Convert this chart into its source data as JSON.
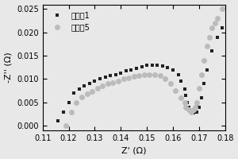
{
  "series1_label": "对比例1",
  "series2_label": "实施例5",
  "series1_color": "#222222",
  "series2_color": "#bbbbbb",
  "series1_marker": "s",
  "series2_marker": "o",
  "series1_markersize": 3.5,
  "series2_markersize": 5.0,
  "xlabel": "Z' (Ω)",
  "ylabel": "-Z'' (Ω)",
  "xlim": [
    0.11,
    0.18
  ],
  "ylim": [
    -0.001,
    0.026
  ],
  "xticks": [
    0.11,
    0.12,
    0.13,
    0.14,
    0.15,
    0.16,
    0.17,
    0.18
  ],
  "yticks": [
    0.0,
    0.005,
    0.01,
    0.015,
    0.02,
    0.025
  ],
  "series1_x": [
    0.116,
    0.118,
    0.12,
    0.122,
    0.124,
    0.126,
    0.128,
    0.13,
    0.132,
    0.134,
    0.136,
    0.138,
    0.14,
    0.142,
    0.144,
    0.146,
    0.148,
    0.15,
    0.152,
    0.154,
    0.156,
    0.158,
    0.16,
    0.162,
    0.163,
    0.1645,
    0.165,
    0.1655,
    0.166,
    0.167,
    0.168,
    0.169,
    0.17,
    0.171,
    0.172,
    0.173,
    0.175,
    0.177,
    0.179
  ],
  "series1_y": [
    0.001,
    0.003,
    0.005,
    0.007,
    0.0078,
    0.0085,
    0.009,
    0.0095,
    0.01,
    0.0105,
    0.0108,
    0.011,
    0.0113,
    0.0118,
    0.012,
    0.0123,
    0.0127,
    0.013,
    0.013,
    0.013,
    0.0128,
    0.0125,
    0.012,
    0.011,
    0.0095,
    0.0078,
    0.0065,
    0.005,
    0.004,
    0.003,
    0.0027,
    0.003,
    0.004,
    0.006,
    0.009,
    0.012,
    0.016,
    0.019,
    0.021
  ],
  "series2_x": [
    0.119,
    0.121,
    0.123,
    0.125,
    0.127,
    0.129,
    0.131,
    0.133,
    0.135,
    0.137,
    0.139,
    0.141,
    0.143,
    0.145,
    0.147,
    0.149,
    0.151,
    0.153,
    0.155,
    0.157,
    0.159,
    0.161,
    0.163,
    0.1645,
    0.165,
    0.166,
    0.167,
    0.168,
    0.1685,
    0.169,
    0.17,
    0.171,
    0.172,
    0.173,
    0.174,
    0.175,
    0.176,
    0.177,
    0.179
  ],
  "series2_y": [
    0.0,
    0.003,
    0.005,
    0.0062,
    0.0068,
    0.0074,
    0.008,
    0.0085,
    0.009,
    0.0093,
    0.0096,
    0.01,
    0.0103,
    0.0106,
    0.0108,
    0.011,
    0.011,
    0.011,
    0.0108,
    0.01,
    0.009,
    0.0075,
    0.006,
    0.005,
    0.004,
    0.0035,
    0.003,
    0.0035,
    0.004,
    0.005,
    0.008,
    0.011,
    0.014,
    0.017,
    0.019,
    0.021,
    0.022,
    0.023,
    0.025
  ],
  "legend_loc": "upper left",
  "tick_fontsize": 7,
  "label_fontsize": 8,
  "legend_fontsize": 7,
  "background_color": "#e8e8e8",
  "figure_facecolor": "#e8e8e8"
}
